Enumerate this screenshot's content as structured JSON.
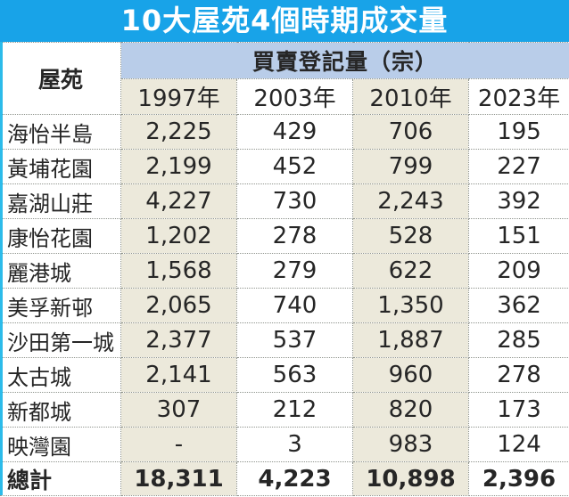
{
  "title": "10大屋苑4個時期成交量",
  "table": {
    "estate_header": "屋苑",
    "group_header": "買賣登記量（宗）",
    "year_headers": [
      "1997年",
      "2003年",
      "2010年",
      "2023年"
    ],
    "rows": [
      {
        "estate": "海怡半島",
        "values": [
          "2,225",
          "429",
          "706",
          "195"
        ]
      },
      {
        "estate": "黃埔花園",
        "values": [
          "2,199",
          "452",
          "799",
          "227"
        ]
      },
      {
        "estate": "嘉湖山莊",
        "values": [
          "4,227",
          "730",
          "2,243",
          "392"
        ]
      },
      {
        "estate": "康怡花園",
        "values": [
          "1,202",
          "278",
          "528",
          "151"
        ]
      },
      {
        "estate": "麗港城",
        "values": [
          "1,568",
          "279",
          "622",
          "209"
        ]
      },
      {
        "estate": "美孚新邨",
        "values": [
          "2,065",
          "740",
          "1,350",
          "362"
        ]
      },
      {
        "estate": "沙田第一城",
        "values": [
          "2,377",
          "537",
          "1,887",
          "285"
        ]
      },
      {
        "estate": "太古城",
        "values": [
          "2,141",
          "563",
          "960",
          "278"
        ]
      },
      {
        "estate": "新都城",
        "values": [
          "307",
          "212",
          "820",
          "173"
        ]
      },
      {
        "estate": "映灣園",
        "values": [
          "-",
          "3",
          "983",
          "124"
        ]
      }
    ],
    "total": {
      "label": "總計",
      "values": [
        "18,311",
        "4,223",
        "10,898",
        "2,396"
      ]
    }
  },
  "colors": {
    "banner_blue": "#18a3e8",
    "subheader_blue": "#b9cde9",
    "column_beige": "#ece9db",
    "total_red": "#d4312f",
    "left_strip_cyan": "#2cbbea"
  },
  "chart_data": {
    "type": "table",
    "title": "10大屋苑4個時期成交量",
    "column_group": "買賣登記量（宗）",
    "columns": [
      "屋苑",
      "1997年",
      "2003年",
      "2010年",
      "2023年"
    ],
    "rows": [
      [
        "海怡半島",
        2225,
        429,
        706,
        195
      ],
      [
        "黃埔花園",
        2199,
        452,
        799,
        227
      ],
      [
        "嘉湖山莊",
        4227,
        730,
        2243,
        392
      ],
      [
        "康怡花園",
        1202,
        278,
        528,
        151
      ],
      [
        "麗港城",
        1568,
        279,
        622,
        209
      ],
      [
        "美孚新邨",
        2065,
        740,
        1350,
        362
      ],
      [
        "沙田第一城",
        2377,
        537,
        1887,
        285
      ],
      [
        "太古城",
        2141,
        563,
        960,
        278
      ],
      [
        "新都城",
        307,
        212,
        820,
        173
      ],
      [
        "映灣園",
        null,
        3,
        983,
        124
      ]
    ],
    "totals": [
      "總計",
      18311,
      4223,
      10898,
      2396
    ],
    "notes": "2023年總計以紅色顯示"
  }
}
